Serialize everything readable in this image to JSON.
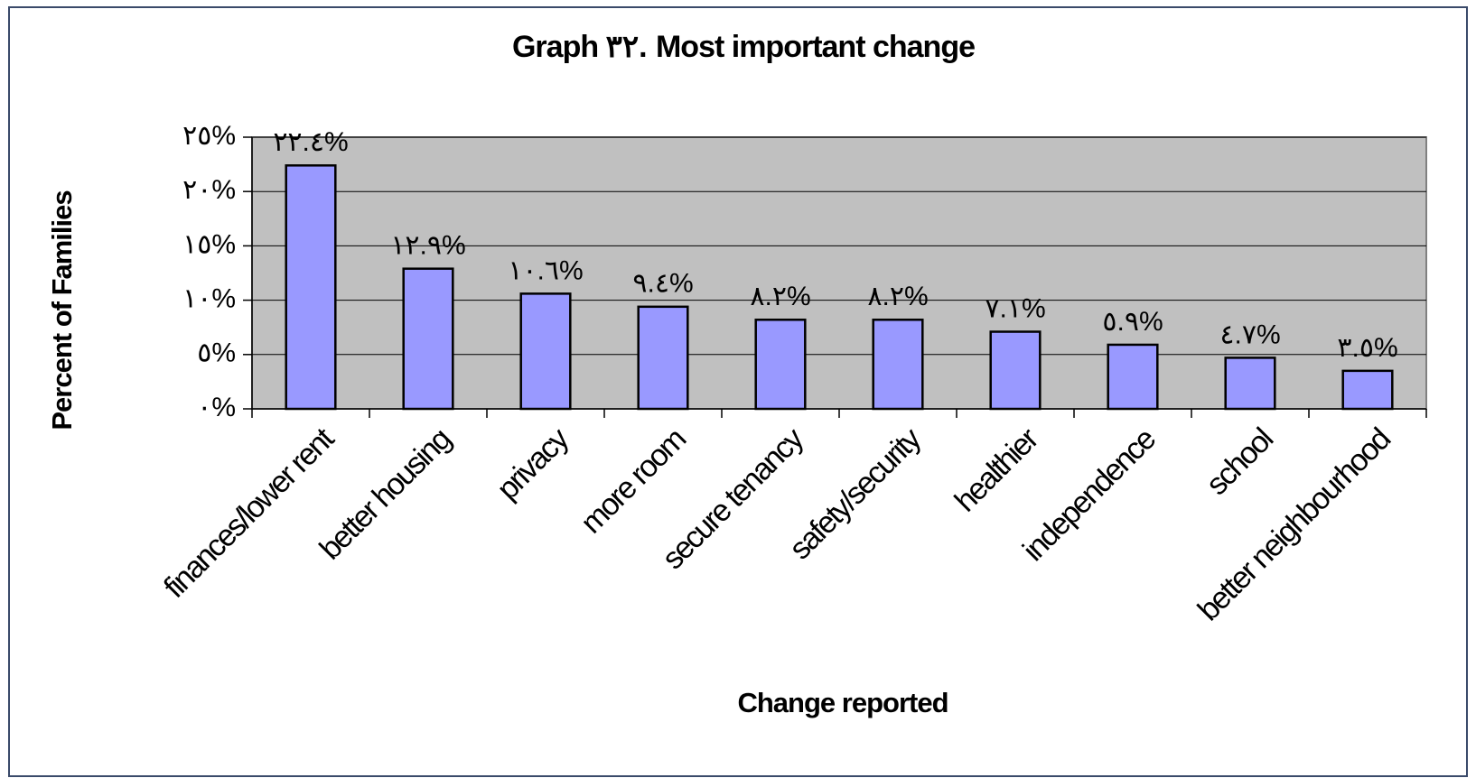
{
  "chart_data": {
    "type": "bar",
    "title": "Graph ٣٢. Most important change",
    "y_label": "Percent of Families",
    "x_label": "Change reported",
    "categories": [
      "finances/lower rent",
      "better housing",
      "privacy",
      "more room",
      "secure tenancy",
      "safety/security",
      "healthier",
      "independence",
      "school",
      "better neighbourhood"
    ],
    "values": [
      22.4,
      12.9,
      10.6,
      9.4,
      8.2,
      8.2,
      7.1,
      5.9,
      4.7,
      3.5
    ],
    "value_labels": [
      "٢٢.٤%",
      "١٢.٩%",
      "١٠.٦%",
      "٩.٤%",
      "٨.٢%",
      "٨.٢%",
      "٧.١%",
      "٥.٩%",
      "٤.٧%",
      "٣.٥%"
    ],
    "color": "#9999ff",
    "plot_background": "#c0c0c0",
    "ylim": [
      0,
      25
    ],
    "yticks": [
      {
        "value": 0,
        "label": "٠%"
      },
      {
        "value": 5,
        "label": "٥%"
      },
      {
        "value": 10,
        "label": "١٠%"
      },
      {
        "value": 15,
        "label": "١٥%"
      },
      {
        "value": 20,
        "label": "٢٠%"
      },
      {
        "value": 25,
        "label": "٢٥%"
      }
    ],
    "grid": true
  }
}
